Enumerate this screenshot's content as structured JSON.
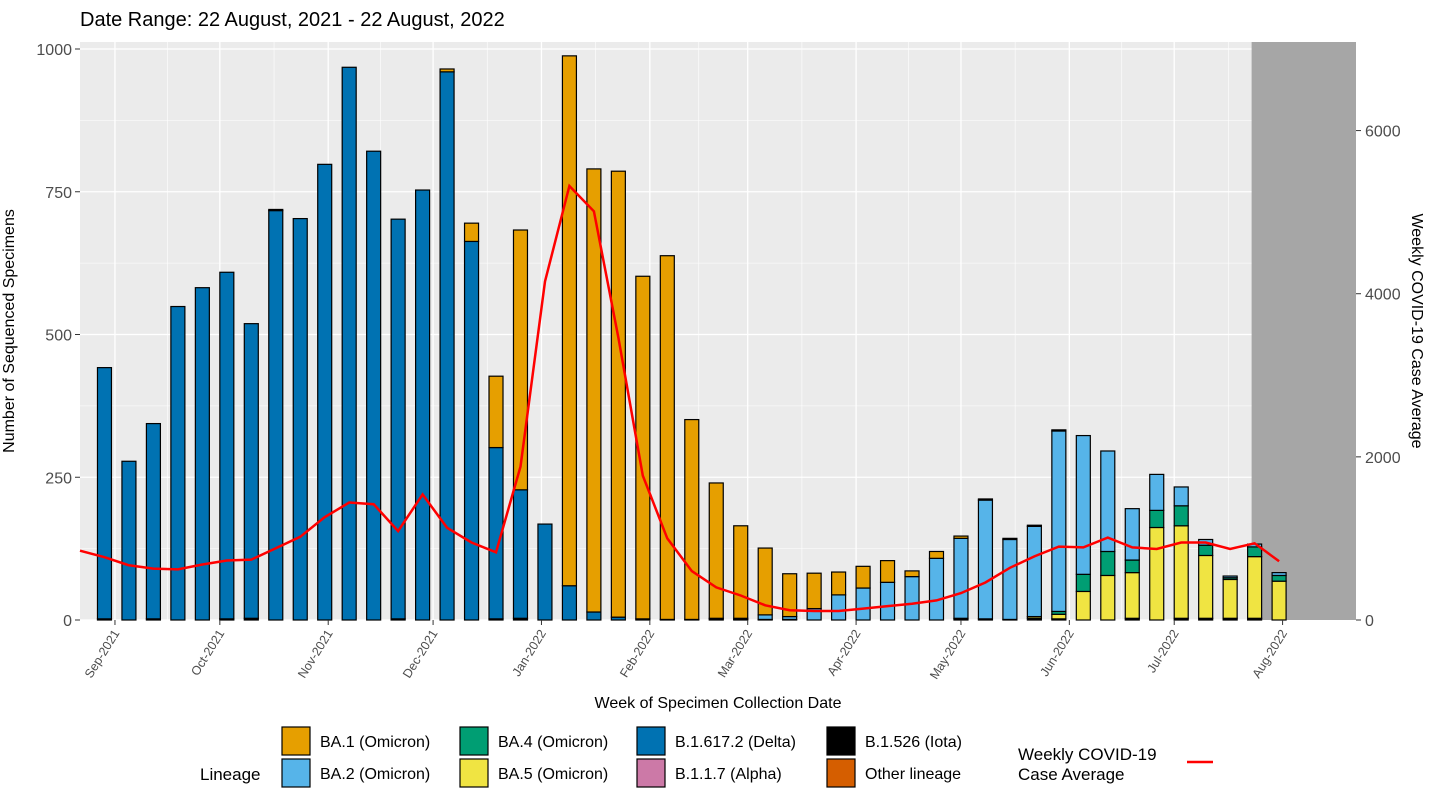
{
  "chart_data": {
    "type": "bar",
    "subtitle": "Date Range: 22 August, 2021 - 22 August, 2022",
    "xlabel": "Week of Specimen Collection Date",
    "ylabel": "Number of Sequenced Specimens",
    "y2label": "Weekly COVID-19 Case Average",
    "ylim": [
      0,
      1000
    ],
    "y2lim": [
      0,
      7000
    ],
    "yticks": [
      0,
      250,
      500,
      750,
      1000
    ],
    "y2ticks": [
      0,
      2000,
      4000,
      6000
    ],
    "xrange": [
      "2021-08-22",
      "2022-08-22"
    ],
    "xticks": [
      "Sep-2021",
      "Oct-2021",
      "Nov-2021",
      "Dec-2021",
      "Jan-2022",
      "Feb-2022",
      "Mar-2022",
      "Apr-2022",
      "May-2022",
      "Jun-2022",
      "Jul-2022",
      "Aug-2022"
    ],
    "xtick_dates": [
      "2021-09-01",
      "2021-10-01",
      "2021-11-01",
      "2021-12-01",
      "2022-01-01",
      "2022-02-01",
      "2022-03-01",
      "2022-04-01",
      "2022-05-01",
      "2022-06-01",
      "2022-07-01",
      "2022-08-01"
    ],
    "shaded_region_start": "2022-07-24",
    "stack_order": [
      "Other lineage",
      "B.1.526 (Iota)",
      "B.1.1.7 (Alpha)",
      "B.1.617.2 (Delta)",
      "BA.5 (Omicron)",
      "BA.4 (Omicron)",
      "BA.2 (Omicron)",
      "BA.1 (Omicron)"
    ],
    "weeks": [
      "2021-08-29",
      "2021-09-05",
      "2021-09-12",
      "2021-09-19",
      "2021-09-26",
      "2021-10-03",
      "2021-10-10",
      "2021-10-17",
      "2021-10-24",
      "2021-10-31",
      "2021-11-07",
      "2021-11-14",
      "2021-11-21",
      "2021-11-28",
      "2021-12-05",
      "2021-12-12",
      "2021-12-19",
      "2021-12-26",
      "2022-01-02",
      "2022-01-09",
      "2022-01-16",
      "2022-01-23",
      "2022-01-30",
      "2022-02-06",
      "2022-02-13",
      "2022-02-20",
      "2022-02-27",
      "2022-03-06",
      "2022-03-13",
      "2022-03-20",
      "2022-03-27",
      "2022-04-03",
      "2022-04-10",
      "2022-04-17",
      "2022-04-24",
      "2022-05-01",
      "2022-05-08",
      "2022-05-15",
      "2022-05-22",
      "2022-05-29",
      "2022-06-05",
      "2022-06-12",
      "2022-06-19",
      "2022-06-26",
      "2022-07-03",
      "2022-07-10",
      "2022-07-17",
      "2022-07-24",
      "2022-07-31"
    ],
    "series": [
      {
        "name": "B.1.617.2 (Delta)",
        "color": "#0072B2",
        "values": [
          440,
          278,
          342,
          549,
          582,
          607,
          516,
          717,
          703,
          798,
          968,
          821,
          700,
          753,
          960,
          663,
          300,
          225,
          168,
          60,
          14,
          5,
          2,
          1,
          1,
          1,
          1,
          1,
          1,
          0,
          0,
          0,
          0,
          0,
          0,
          1,
          0,
          1,
          0,
          0,
          0,
          0,
          0,
          0,
          0,
          0,
          0,
          0,
          0
        ]
      },
      {
        "name": "BA.1 (Omicron)",
        "color": "#E69F00",
        "values": [
          0,
          0,
          0,
          0,
          0,
          0,
          0,
          2,
          0,
          0,
          0,
          0,
          0,
          0,
          5,
          32,
          125,
          455,
          0,
          928,
          776,
          781,
          600,
          637,
          350,
          237,
          162,
          117,
          75,
          62,
          40,
          38,
          38,
          10,
          12,
          4,
          2,
          2,
          2,
          2,
          0,
          0,
          0,
          0,
          0,
          0,
          0,
          0,
          0
        ]
      },
      {
        "name": "BA.2 (Omicron)",
        "color": "#56B4E9",
        "values": [
          0,
          0,
          0,
          0,
          0,
          0,
          0,
          0,
          0,
          0,
          0,
          0,
          0,
          0,
          0,
          0,
          0,
          0,
          0,
          0,
          0,
          0,
          0,
          0,
          0,
          0,
          2,
          8,
          5,
          20,
          44,
          56,
          66,
          76,
          108,
          140,
          208,
          140,
          158,
          316,
          243,
          176,
          90,
          63,
          33,
          10,
          3,
          5,
          5
        ]
      },
      {
        "name": "BA.4 (Omicron)",
        "color": "#009E73",
        "values": [
          0,
          0,
          0,
          0,
          0,
          0,
          0,
          0,
          0,
          0,
          0,
          0,
          0,
          0,
          0,
          0,
          0,
          0,
          0,
          0,
          0,
          0,
          0,
          0,
          0,
          0,
          0,
          0,
          0,
          0,
          0,
          0,
          0,
          0,
          0,
          0,
          0,
          0,
          0,
          5,
          30,
          42,
          22,
          30,
          35,
          18,
          3,
          17,
          10
        ]
      },
      {
        "name": "BA.5 (Omicron)",
        "color": "#F0E442",
        "values": [
          0,
          0,
          0,
          0,
          0,
          0,
          0,
          0,
          0,
          0,
          0,
          0,
          0,
          0,
          0,
          0,
          0,
          0,
          0,
          0,
          0,
          0,
          0,
          0,
          0,
          0,
          0,
          0,
          0,
          0,
          0,
          0,
          0,
          0,
          0,
          0,
          0,
          0,
          3,
          8,
          50,
          78,
          80,
          162,
          162,
          110,
          68,
          108,
          68
        ]
      },
      {
        "name": "B.1.1.7 (Alpha)",
        "color": "#CC79A7",
        "values": []
      },
      {
        "name": "B.1.526 (Iota)",
        "color": "#000000",
        "values": [
          2,
          0,
          2,
          0,
          0,
          2,
          3,
          0,
          0,
          0,
          0,
          0,
          2,
          0,
          0,
          0,
          2,
          3,
          0,
          0,
          0,
          0,
          0,
          0,
          0,
          2,
          0,
          0,
          0,
          0,
          0,
          0,
          0,
          0,
          0,
          2,
          2,
          0,
          3,
          2,
          0,
          0,
          3,
          0,
          3,
          3,
          3,
          3,
          0
        ]
      },
      {
        "name": "Other lineage",
        "color": "#D55E00",
        "values": []
      }
    ],
    "line": {
      "name": "Weekly COVID-19 Case Average",
      "color": "#FF0000",
      "x": [
        "2021-08-22",
        "2021-08-29",
        "2021-09-05",
        "2021-09-12",
        "2021-09-19",
        "2021-09-26",
        "2021-10-03",
        "2021-10-10",
        "2021-10-17",
        "2021-10-24",
        "2021-10-31",
        "2021-11-07",
        "2021-11-14",
        "2021-11-21",
        "2021-11-28",
        "2021-12-05",
        "2021-12-12",
        "2021-12-19",
        "2021-12-26",
        "2022-01-02",
        "2022-01-09",
        "2022-01-16",
        "2022-01-23",
        "2022-01-30",
        "2022-02-06",
        "2022-02-13",
        "2022-02-20",
        "2022-02-27",
        "2022-03-06",
        "2022-03-13",
        "2022-03-20",
        "2022-03-27",
        "2022-04-03",
        "2022-04-10",
        "2022-04-17",
        "2022-04-24",
        "2022-05-01",
        "2022-05-08",
        "2022-05-15",
        "2022-05-22",
        "2022-05-29",
        "2022-06-05",
        "2022-06-12",
        "2022-06-19",
        "2022-06-26",
        "2022-07-03",
        "2022-07-10",
        "2022-07-17",
        "2022-07-24",
        "2022-07-31"
      ],
      "values": [
        850,
        770,
        670,
        630,
        620,
        680,
        730,
        740,
        880,
        1020,
        1260,
        1440,
        1420,
        1090,
        1540,
        1130,
        950,
        830,
        1880,
        4150,
        5320,
        5010,
        3460,
        1770,
        1000,
        600,
        400,
        300,
        180,
        120,
        110,
        110,
        140,
        170,
        200,
        240,
        330,
        460,
        640,
        780,
        900,
        890,
        1010,
        890,
        870,
        950,
        950,
        870,
        940,
        720
      ]
    },
    "legend": {
      "position": "bottom",
      "title": "Lineage",
      "line_title": "Weekly COVID-19\nCase Average",
      "items": [
        "BA.1 (Omicron)",
        "BA.2 (Omicron)",
        "BA.4 (Omicron)",
        "BA.5 (Omicron)",
        "B.1.617.2 (Delta)",
        "B.1.1.7 (Alpha)",
        "B.1.526 (Iota)",
        "Other lineage"
      ]
    },
    "grid": true,
    "panel_background": "#EBEBEB",
    "shade_color": "#A6A6A6"
  }
}
